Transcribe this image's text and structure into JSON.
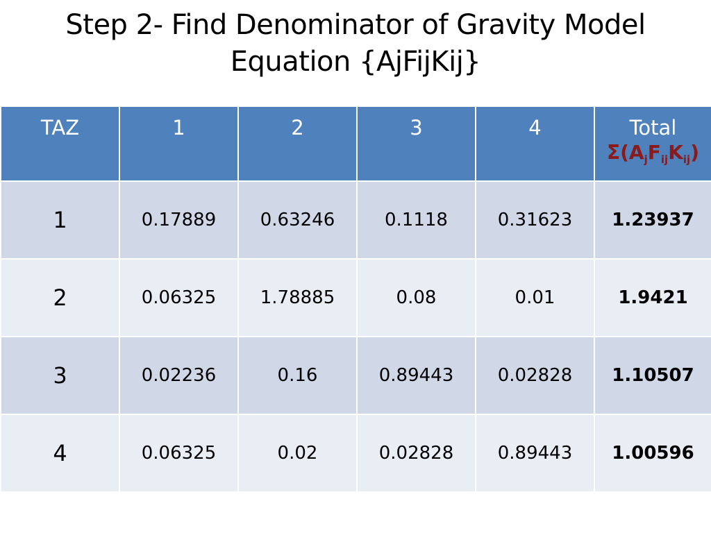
{
  "title": {
    "line1": "Step 2- Find Denominator of Gravity Model",
    "line2": "Equation {AjFijKij}"
  },
  "table": {
    "header": {
      "taz": "TAZ",
      "col1": "1",
      "col2": "2",
      "col3": "3",
      "col4": "4",
      "total": "Total",
      "formula": {
        "sigma_open": "Σ(A",
        "sub_j": "j",
        "f": "F",
        "sub_ij1": "ij",
        "k": "K",
        "sub_ij2": "ij",
        "close": ")"
      }
    },
    "rows": [
      {
        "taz": "1",
        "v1": "0.17889",
        "v2": "0.63246",
        "v3": "0.1118",
        "v4": "0.31623",
        "total": "1.23937"
      },
      {
        "taz": "2",
        "v1": "0.06325",
        "v2": "1.78885",
        "v3": "0.08",
        "v4": "0.01",
        "total": "1.9421"
      },
      {
        "taz": "3",
        "v1": "0.02236",
        "v2": "0.16",
        "v3": "0.89443",
        "v4": "0.02828",
        "total": "1.10507"
      },
      {
        "taz": "4",
        "v1": "0.06325",
        "v2": "0.02",
        "v3": "0.02828",
        "v4": "0.89443",
        "total": "1.00596"
      }
    ]
  },
  "colors": {
    "header_bg": "#4f81bd",
    "row_odd_bg": "#d0d8e8",
    "row_even_bg": "#e9edf4",
    "formula_color": "#8b1a1a"
  }
}
